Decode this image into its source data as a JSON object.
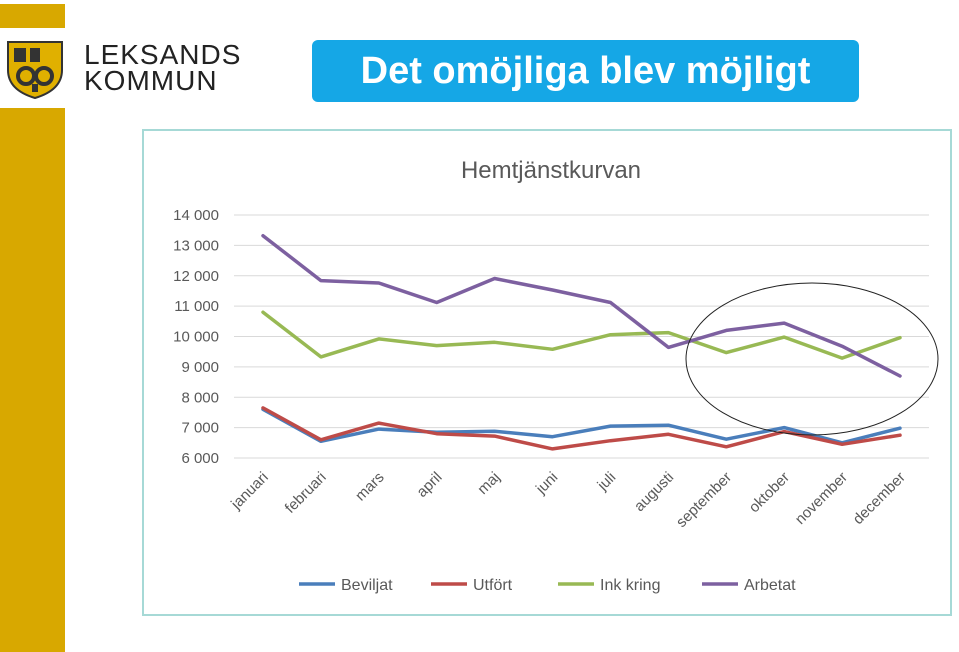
{
  "header": {
    "logo_line1": "LEKSANDS",
    "logo_line2": "KOMMUN",
    "title": "Det omöjliga blev möjligt"
  },
  "colors": {
    "accent_bar": "#d8a800",
    "title_bg": "#15a7e6"
  },
  "chart_data": {
    "type": "line",
    "title": "Hemtjänstkurvan",
    "categories": [
      "januari",
      "februari",
      "mars",
      "april",
      "maj",
      "juni",
      "juli",
      "augusti",
      "september",
      "oktober",
      "november",
      "december"
    ],
    "ylim": [
      6000,
      14000
    ],
    "yticks": [
      6000,
      7000,
      8000,
      9000,
      10000,
      11000,
      12000,
      13000,
      14000
    ],
    "ytick_labels": [
      "6 000",
      "7 000",
      "8 000",
      "9 000",
      "10 000",
      "11 000",
      "12 000",
      "13 000",
      "14 000"
    ],
    "grid": true,
    "legend": "bottom",
    "series": [
      {
        "name": "Beviljat",
        "color": "#4a7ebb",
        "values": [
          7600,
          6550,
          6950,
          6850,
          6880,
          6700,
          7050,
          7080,
          6620,
          7000,
          6500,
          6980
        ]
      },
      {
        "name": "Utfört",
        "color": "#be4b48",
        "values": [
          7650,
          6600,
          7150,
          6800,
          6720,
          6300,
          6570,
          6780,
          6370,
          6870,
          6450,
          6750
        ]
      },
      {
        "name": "Ink kring",
        "color": "#98b954",
        "values": [
          10800,
          9330,
          9920,
          9700,
          9810,
          9580,
          10060,
          10130,
          9470,
          9980,
          9290,
          9960
        ]
      },
      {
        "name": "Arbetat",
        "color": "#7d60a0",
        "values": [
          13320,
          11840,
          11760,
          11120,
          11910,
          11530,
          11120,
          9640,
          10200,
          10440,
          9680,
          8700
        ]
      }
    ]
  }
}
